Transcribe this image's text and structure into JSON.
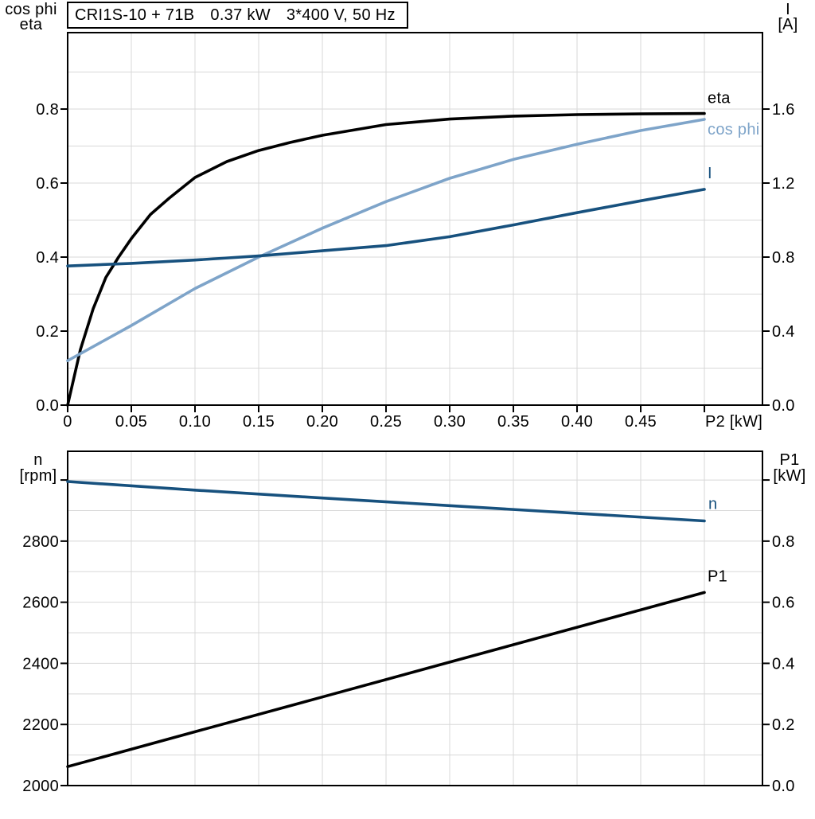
{
  "page": {
    "background": "#FFFFFF"
  },
  "colors": {
    "black": "#000000",
    "light_blue": "#7EA4C9",
    "dark_blue": "#17517E",
    "grid": "#D8D8D8",
    "axis": "#000000",
    "box_fill": "#FFFFFF",
    "box_border": "#000000"
  },
  "title_box": {
    "parts": [
      "CRI1S-10 + 71B",
      "0.37 kW",
      "3*400 V, 50 Hz"
    ]
  },
  "chart_data": [
    {
      "id": "motor-electrical",
      "type": "line",
      "title": "CRI1S-10 + 71B 0.37 kW 3*400 V, 50 Hz",
      "grid": true,
      "legend_position": "curve-end-labels",
      "x_axis": {
        "title": "P2 [kW]",
        "min": 0,
        "max": 0.5456,
        "grid_step": 0.05,
        "ticks": [
          0,
          0.05,
          0.1,
          0.15,
          0.2,
          0.25,
          0.3,
          0.35,
          0.4,
          0.45,
          0.5
        ],
        "tick_labels": [
          "0",
          "0.05",
          "0.10",
          "0.15",
          "0.20",
          "0.25",
          "0.30",
          "0.35",
          "0.40",
          "0.45",
          ""
        ]
      },
      "left_axis": {
        "title_lines": [
          "cos phi",
          "eta"
        ],
        "min": 0,
        "max": 1.0065,
        "grid_step": 0.1,
        "ticks": [
          0.0,
          0.2,
          0.4,
          0.6,
          0.8
        ],
        "tick_labels": [
          "0.0",
          "0.2",
          "0.4",
          "0.6",
          "0.8"
        ],
        "extra_ticks": []
      },
      "right_axis": {
        "title_lines": [
          "I",
          "[A]"
        ],
        "min": 0,
        "max": 2.013,
        "ticks": [
          0.0,
          0.4,
          0.8,
          1.2,
          1.6
        ],
        "tick_labels": [
          "0.0",
          "0.4",
          "0.8",
          "1.2",
          "1.6"
        ],
        "extra_ticks": []
      },
      "series": [
        {
          "name": "eta",
          "axis": "left",
          "color_key": "black",
          "label_offset": [
            4,
            -13
          ],
          "points": [
            [
              0,
              0
            ],
            [
              0.01,
              0.15
            ],
            [
              0.02,
              0.26
            ],
            [
              0.03,
              0.345
            ],
            [
              0.04,
              0.4
            ],
            [
              0.05,
              0.45
            ],
            [
              0.065,
              0.515
            ],
            [
              0.08,
              0.56
            ],
            [
              0.1,
              0.615
            ],
            [
              0.125,
              0.658
            ],
            [
              0.15,
              0.688
            ],
            [
              0.175,
              0.71
            ],
            [
              0.2,
              0.729
            ],
            [
              0.25,
              0.758
            ],
            [
              0.3,
              0.773
            ],
            [
              0.35,
              0.781
            ],
            [
              0.4,
              0.785
            ],
            [
              0.45,
              0.787
            ],
            [
              0.5,
              0.788
            ]
          ]
        },
        {
          "name": "cos phi",
          "axis": "left",
          "color_key": "light_blue",
          "label_offset": [
            4,
            19
          ],
          "points": [
            [
              0,
              0.12
            ],
            [
              0.05,
              0.215
            ],
            [
              0.1,
              0.315
            ],
            [
              0.15,
              0.4
            ],
            [
              0.2,
              0.478
            ],
            [
              0.25,
              0.55
            ],
            [
              0.3,
              0.613
            ],
            [
              0.35,
              0.664
            ],
            [
              0.4,
              0.705
            ],
            [
              0.45,
              0.742
            ],
            [
              0.5,
              0.772
            ]
          ]
        },
        {
          "name": "I",
          "axis": "right",
          "color_key": "dark_blue",
          "label_offset": [
            4,
            -14
          ],
          "points": [
            [
              0,
              0.752
            ],
            [
              0.05,
              0.766
            ],
            [
              0.1,
              0.784
            ],
            [
              0.15,
              0.806
            ],
            [
              0.2,
              0.834
            ],
            [
              0.25,
              0.862
            ],
            [
              0.3,
              0.91
            ],
            [
              0.35,
              0.974
            ],
            [
              0.4,
              1.04
            ],
            [
              0.45,
              1.104
            ],
            [
              0.5,
              1.166
            ]
          ]
        }
      ]
    },
    {
      "id": "speed-power",
      "type": "line",
      "title": "",
      "grid": true,
      "legend_position": "curve-end-labels",
      "x_axis": {
        "title": "",
        "min": 0,
        "max": 0.5456,
        "grid_step": 0.05,
        "ticks": [],
        "tick_labels": []
      },
      "left_axis": {
        "title_lines": [
          "n",
          "[rpm]"
        ],
        "min": 2000,
        "max": 3094,
        "grid_step": 100,
        "ticks": [
          2000,
          2200,
          2400,
          2600,
          2800
        ],
        "tick_labels": [
          "2000",
          "2200",
          "2400",
          "2600",
          "2800"
        ],
        "extra_ticks": [
          3000
        ]
      },
      "right_axis": {
        "title_lines": [
          "P1",
          "[kW]"
        ],
        "min": 0,
        "max": 1.094,
        "ticks": [
          0.0,
          0.2,
          0.4,
          0.6,
          0.8
        ],
        "tick_labels": [
          "0.0",
          "0.2",
          "0.4",
          "0.6",
          "0.8"
        ],
        "extra_ticks": [
          1.0
        ]
      },
      "series": [
        {
          "name": "n",
          "axis": "left",
          "color_key": "dark_blue",
          "label_offset": [
            5,
            -15
          ],
          "points": [
            [
              0,
              2995
            ],
            [
              0.1,
              2967
            ],
            [
              0.2,
              2941
            ],
            [
              0.3,
              2916
            ],
            [
              0.4,
              2891
            ],
            [
              0.5,
              2866
            ]
          ]
        },
        {
          "name": "P1",
          "axis": "right",
          "color_key": "black",
          "label_offset": [
            4,
            -14
          ],
          "points": [
            [
              0,
              0.062
            ],
            [
              0.1,
              0.176
            ],
            [
              0.2,
              0.29
            ],
            [
              0.3,
              0.404
            ],
            [
              0.4,
              0.518
            ],
            [
              0.5,
              0.632
            ]
          ]
        }
      ]
    }
  ]
}
